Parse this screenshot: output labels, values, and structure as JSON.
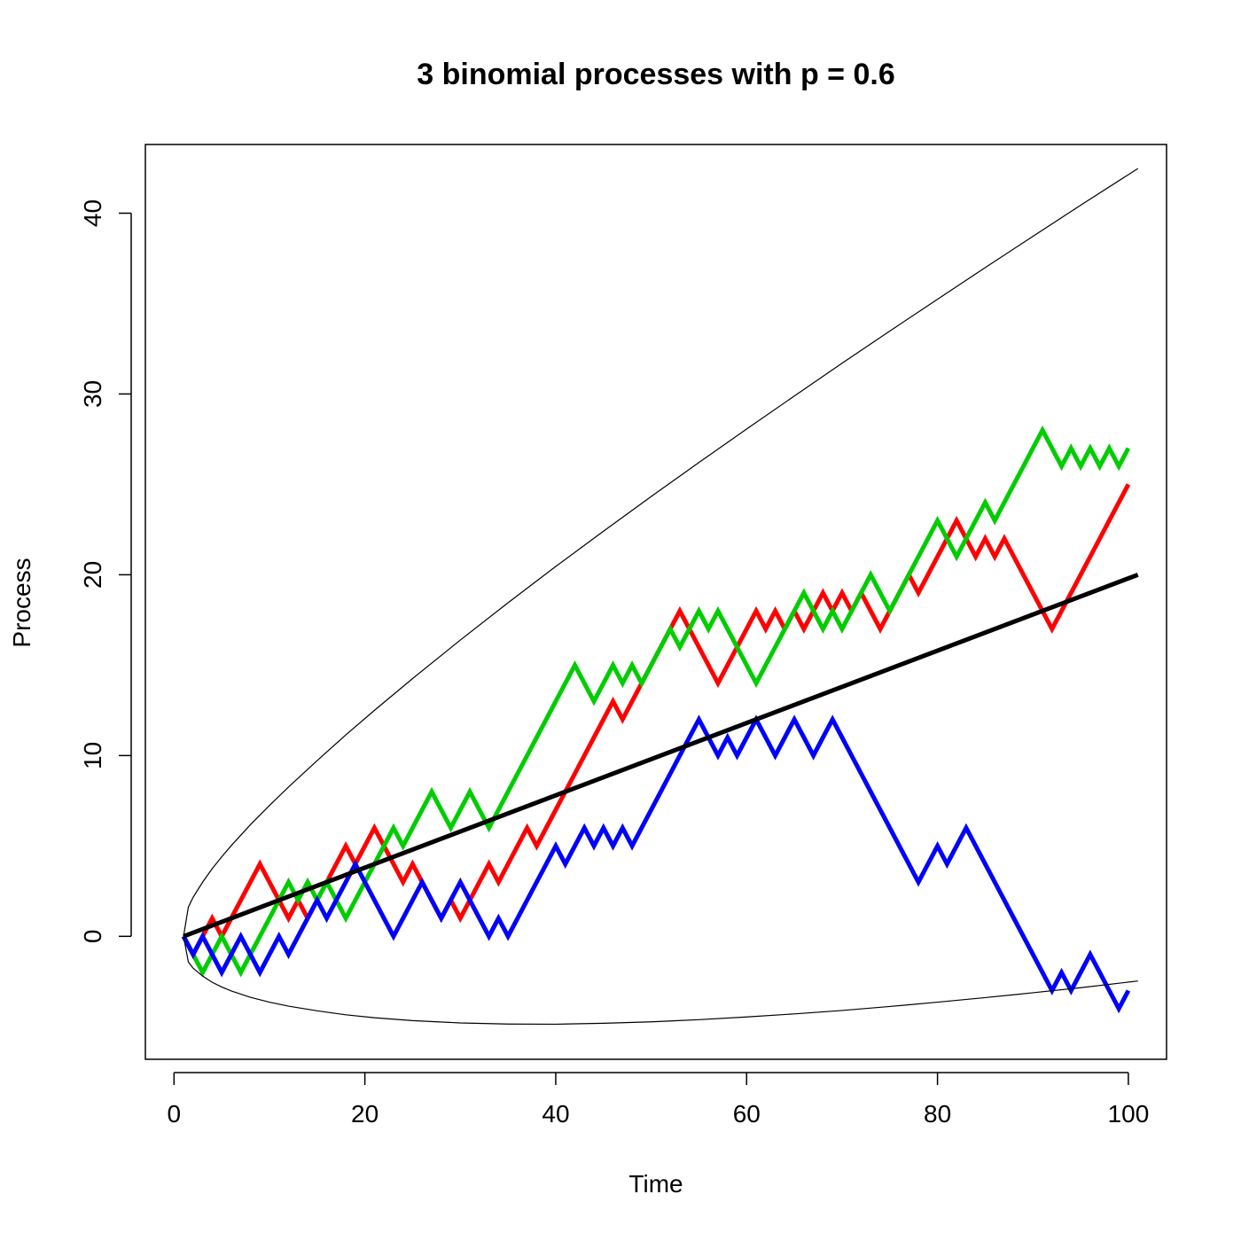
{
  "chart_data": {
    "type": "line",
    "title": "3 binomial processes with p = 0.6",
    "xlabel": "Time",
    "ylabel": "Process",
    "xlim": [
      -3,
      104
    ],
    "ylim": [
      -6.8,
      43.8
    ],
    "xticks": [
      0,
      20,
      40,
      60,
      80,
      100
    ],
    "yticks": [
      0,
      10,
      20,
      30,
      40
    ],
    "grid": false,
    "legend": "none",
    "series": [
      {
        "color": "#ff0000",
        "x": [
          1,
          2,
          3,
          4,
          5,
          6,
          7,
          8,
          9,
          10,
          11,
          12,
          13,
          14,
          15,
          16,
          17,
          18,
          19,
          20,
          21,
          22,
          23,
          24,
          25,
          26,
          27,
          28,
          29,
          30,
          31,
          32,
          33,
          34,
          35,
          36,
          37,
          38,
          39,
          40,
          41,
          42,
          43,
          44,
          45,
          46,
          47,
          48,
          49,
          50,
          51,
          52,
          53,
          54,
          55,
          56,
          57,
          58,
          59,
          60,
          61,
          62,
          63,
          64,
          65,
          66,
          67,
          68,
          69,
          70,
          71,
          72,
          73,
          74,
          75,
          76,
          77,
          78,
          79,
          80,
          81,
          82,
          83,
          84,
          85,
          86,
          87,
          88,
          89,
          90,
          91,
          92,
          93,
          94,
          95,
          96,
          97,
          98,
          99,
          100
        ],
        "y": [
          0,
          -1,
          0,
          1,
          0,
          1,
          2,
          3,
          4,
          3,
          2,
          1,
          2,
          1,
          2,
          3,
          4,
          5,
          4,
          5,
          6,
          5,
          4,
          3,
          4,
          3,
          2,
          1,
          2,
          1,
          2,
          3,
          4,
          3,
          4,
          5,
          6,
          5,
          6,
          7,
          8,
          9,
          10,
          11,
          12,
          13,
          12,
          13,
          14,
          15,
          16,
          17,
          18,
          17,
          16,
          15,
          14,
          15,
          16,
          17,
          18,
          17,
          18,
          17,
          18,
          17,
          18,
          19,
          18,
          19,
          18,
          19,
          18,
          17,
          18,
          19,
          20,
          19,
          20,
          21,
          22,
          23,
          22,
          21,
          22,
          21,
          22,
          21,
          20,
          19,
          18,
          17,
          18,
          19,
          20,
          21,
          22,
          23,
          24,
          25
        ]
      },
      {
        "color": "#00cd00",
        "x": [
          1,
          2,
          3,
          4,
          5,
          6,
          7,
          8,
          9,
          10,
          11,
          12,
          13,
          14,
          15,
          16,
          17,
          18,
          19,
          20,
          21,
          22,
          23,
          24,
          25,
          26,
          27,
          28,
          29,
          30,
          31,
          32,
          33,
          34,
          35,
          36,
          37,
          38,
          39,
          40,
          41,
          42,
          43,
          44,
          45,
          46,
          47,
          48,
          49,
          50,
          51,
          52,
          53,
          54,
          55,
          56,
          57,
          58,
          59,
          60,
          61,
          62,
          63,
          64,
          65,
          66,
          67,
          68,
          69,
          70,
          71,
          72,
          73,
          74,
          75,
          76,
          77,
          78,
          79,
          80,
          81,
          82,
          83,
          84,
          85,
          86,
          87,
          88,
          89,
          90,
          91,
          92,
          93,
          94,
          95,
          96,
          97,
          98,
          99,
          100
        ],
        "y": [
          0,
          -1,
          -2,
          -1,
          0,
          -1,
          -2,
          -1,
          0,
          1,
          2,
          3,
          2,
          3,
          2,
          3,
          2,
          1,
          2,
          3,
          4,
          5,
          6,
          5,
          6,
          7,
          8,
          7,
          6,
          7,
          8,
          7,
          6,
          7,
          8,
          9,
          10,
          11,
          12,
          13,
          14,
          15,
          14,
          13,
          14,
          15,
          14,
          15,
          14,
          15,
          16,
          17,
          16,
          17,
          18,
          17,
          18,
          17,
          16,
          15,
          14,
          15,
          16,
          17,
          18,
          19,
          18,
          17,
          18,
          17,
          18,
          19,
          20,
          19,
          18,
          19,
          20,
          21,
          22,
          23,
          22,
          21,
          22,
          23,
          24,
          23,
          24,
          25,
          26,
          27,
          28,
          27,
          26,
          27,
          26,
          27,
          26,
          27,
          26,
          27
        ]
      },
      {
        "color": "#0000ff",
        "x": [
          1,
          2,
          3,
          4,
          5,
          6,
          7,
          8,
          9,
          10,
          11,
          12,
          13,
          14,
          15,
          16,
          17,
          18,
          19,
          20,
          21,
          22,
          23,
          24,
          25,
          26,
          27,
          28,
          29,
          30,
          31,
          32,
          33,
          34,
          35,
          36,
          37,
          38,
          39,
          40,
          41,
          42,
          43,
          44,
          45,
          46,
          47,
          48,
          49,
          50,
          51,
          52,
          53,
          54,
          55,
          56,
          57,
          58,
          59,
          60,
          61,
          62,
          63,
          64,
          65,
          66,
          67,
          68,
          69,
          70,
          71,
          72,
          73,
          74,
          75,
          76,
          77,
          78,
          79,
          80,
          81,
          82,
          83,
          84,
          85,
          86,
          87,
          88,
          89,
          90,
          91,
          92,
          93,
          94,
          95,
          96,
          97,
          98,
          99,
          100
        ],
        "y": [
          0,
          -1,
          0,
          -1,
          -2,
          -1,
          0,
          -1,
          -2,
          -1,
          0,
          -1,
          0,
          1,
          2,
          1,
          2,
          3,
          4,
          3,
          2,
          1,
          0,
          1,
          2,
          3,
          2,
          1,
          2,
          3,
          2,
          1,
          0,
          1,
          0,
          1,
          2,
          3,
          4,
          5,
          4,
          5,
          6,
          5,
          6,
          5,
          6,
          5,
          6,
          7,
          8,
          9,
          10,
          11,
          12,
          11,
          10,
          11,
          10,
          11,
          12,
          11,
          10,
          11,
          12,
          11,
          10,
          11,
          12,
          11,
          10,
          9,
          8,
          7,
          6,
          5,
          4,
          3,
          4,
          5,
          4,
          5,
          6,
          5,
          4,
          3,
          2,
          1,
          0,
          -1,
          -2,
          -3,
          -2,
          -3,
          -2,
          -1,
          -2,
          -3,
          -4,
          -3
        ]
      },
      {
        "color": "#000000",
        "x": [
          1,
          101
        ],
        "y": [
          0,
          20
        ]
      },
      {
        "color": "#000000",
        "x": [
          1,
          1.5,
          2,
          3,
          4,
          5,
          6,
          8,
          10,
          12,
          15,
          18,
          21,
          25,
          30,
          35,
          40,
          45,
          50,
          55,
          60,
          65,
          70,
          75,
          80,
          85,
          90,
          95,
          101
        ],
        "y": [
          0,
          1.61,
          2.16,
          3.0,
          3.74,
          4.4,
          5.02,
          6.17,
          7.24,
          8.26,
          9.72,
          11.14,
          12.5,
          14.26,
          16.39,
          18.45,
          20.46,
          22.41,
          24.33,
          26.21,
          28.06,
          29.89,
          31.7,
          33.48,
          35.24,
          36.99,
          38.72,
          40.44,
          42.47
        ]
      },
      {
        "color": "#000000",
        "x": [
          1,
          1.5,
          2,
          3,
          4,
          5,
          6,
          8,
          10,
          12,
          15,
          18,
          21,
          25,
          30,
          35,
          40,
          45,
          50,
          55,
          60,
          65,
          70,
          75,
          80,
          85,
          90,
          95,
          101
        ],
        "y": [
          0,
          -1.41,
          -1.76,
          -2.2,
          -2.54,
          -2.8,
          -3.02,
          -3.37,
          -3.64,
          -3.86,
          -4.12,
          -4.34,
          -4.5,
          -4.66,
          -4.79,
          -4.85,
          -4.86,
          -4.81,
          -4.73,
          -4.61,
          -4.46,
          -4.29,
          -4.1,
          -3.88,
          -3.64,
          -3.39,
          -3.12,
          -2.84,
          -2.47
        ]
      }
    ]
  }
}
